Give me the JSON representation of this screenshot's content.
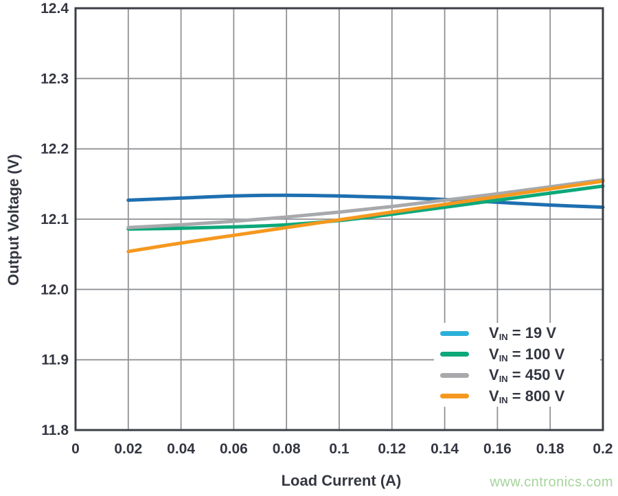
{
  "figure": {
    "background": "#ffffff",
    "text_color": "#343741",
    "grid_color": "#8f9194",
    "border_color": "#3b3e45",
    "watermark": "www.cntronics.com",
    "watermark_color": "#a5d49b"
  },
  "chart_data": {
    "type": "line",
    "title": "",
    "xlabel": "Load Current (A)",
    "ylabel": "Output Voltage (V)",
    "xlim": [
      0,
      0.2
    ],
    "ylim": [
      11.8,
      12.4
    ],
    "grid": true,
    "legend_position": "inside-bottom-right",
    "line_width": 5,
    "xticks": [
      0,
      0.02,
      0.04,
      0.06,
      0.08,
      0.1,
      0.12,
      0.14,
      0.16,
      0.18,
      0.2
    ],
    "xtick_labels": [
      "0",
      "0.02",
      "0.04",
      "0.06",
      "0.08",
      "0.1",
      "0.12",
      "0.14",
      "0.16",
      "0.18",
      "0.2"
    ],
    "yticks": [
      11.8,
      11.9,
      12.0,
      12.1,
      12.2,
      12.3,
      12.4
    ],
    "ytick_labels": [
      "11.8",
      "11.9",
      "12.0",
      "12.1",
      "12.2",
      "12.3",
      "12.4"
    ],
    "x": [
      0.02,
      0.04,
      0.06,
      0.08,
      0.1,
      0.12,
      0.14,
      0.16,
      0.18,
      0.2
    ],
    "series": [
      {
        "name": "VIN = 19 V",
        "legend": {
          "pre": "V",
          "sub": "IN",
          "post": " = 19 V"
        },
        "color": "#1e6fb0",
        "legend_color": "#2cb0d9",
        "values": [
          12.127,
          12.13,
          12.133,
          12.134,
          12.133,
          12.131,
          12.128,
          12.124,
          12.12,
          12.117
        ]
      },
      {
        "name": "VIN = 100 V",
        "legend": {
          "pre": "V",
          "sub": "IN",
          "post": " = 100 V"
        },
        "color": "#0ca87a",
        "legend_color": "#0ca87a",
        "values": [
          12.086,
          12.087,
          12.089,
          12.092,
          12.098,
          12.107,
          12.117,
          12.127,
          12.137,
          12.147
        ]
      },
      {
        "name": "VIN = 450 V",
        "legend": {
          "pre": "V",
          "sub": "IN",
          "post": " = 450 V"
        },
        "color": "#a7a9ac",
        "legend_color": "#a7a9ac",
        "values": [
          12.088,
          12.092,
          12.097,
          12.103,
          12.11,
          12.118,
          12.127,
          12.136,
          12.146,
          12.156
        ]
      },
      {
        "name": "VIN = 800 V",
        "legend": {
          "pre": "V",
          "sub": "IN",
          "post": " = 800 V"
        },
        "color": "#f5981f",
        "legend_color": "#f5981f",
        "values": [
          12.054,
          12.066,
          12.077,
          12.088,
          12.099,
          12.11,
          12.121,
          12.132,
          12.143,
          12.154
        ]
      }
    ]
  }
}
